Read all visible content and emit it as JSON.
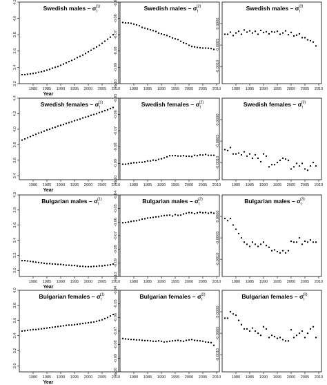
{
  "chart_data": [
    {
      "type": "scatter",
      "title": "Swedish males – σ",
      "superscript": "(1)",
      "subscript": "t",
      "xlabel": "Year",
      "xticks": [
        "1980",
        "1985",
        "1990",
        "1995",
        "2000",
        "2005",
        "2010"
      ],
      "yticks": [
        "3.2",
        "3.4",
        "3.6",
        "3.8",
        "4.0",
        "4.2"
      ],
      "xlim": [
        1975,
        2011
      ],
      "ylim": [
        3.2,
        4.2
      ],
      "x": [
        1976,
        1977,
        1978,
        1979,
        1980,
        1981,
        1982,
        1983,
        1984,
        1985,
        1986,
        1987,
        1988,
        1989,
        1990,
        1991,
        1992,
        1993,
        1994,
        1995,
        1996,
        1997,
        1998,
        1999,
        2000,
        2001,
        2002,
        2003,
        2004,
        2005,
        2006,
        2007,
        2008,
        2009
      ],
      "y": [
        3.31,
        3.31,
        3.315,
        3.32,
        3.325,
        3.33,
        3.34,
        3.345,
        3.355,
        3.365,
        3.375,
        3.39,
        3.4,
        3.41,
        3.425,
        3.44,
        3.455,
        3.47,
        3.485,
        3.5,
        3.52,
        3.535,
        3.55,
        3.57,
        3.59,
        3.61,
        3.63,
        3.65,
        3.67,
        3.695,
        3.72,
        3.745,
        3.77,
        3.8
      ]
    },
    {
      "type": "scatter",
      "title": "Swedish males – σ",
      "superscript": "(2)",
      "subscript": "t",
      "xlabel": "",
      "xticks": [
        "1980",
        "1985",
        "1990",
        "1995",
        "2000",
        "2005",
        "2010"
      ],
      "yticks": [
        "-0.05",
        "-0.06",
        "-0.07",
        "-0.08",
        "-0.09",
        "-0.10"
      ],
      "xlim": [
        1975,
        2011
      ],
      "ylim": [
        -0.1,
        -0.05
      ],
      "x": [
        1976,
        1977,
        1978,
        1979,
        1980,
        1981,
        1982,
        1983,
        1984,
        1985,
        1986,
        1987,
        1988,
        1989,
        1990,
        1991,
        1992,
        1993,
        1994,
        1995,
        1996,
        1997,
        1998,
        1999,
        2000,
        2001,
        2002,
        2003,
        2004,
        2005,
        2006,
        2007,
        2008,
        2009
      ],
      "y": [
        -0.0625,
        -0.0628,
        -0.0628,
        -0.063,
        -0.0635,
        -0.064,
        -0.0645,
        -0.0655,
        -0.066,
        -0.0665,
        -0.067,
        -0.0675,
        -0.068,
        -0.069,
        -0.0695,
        -0.07,
        -0.0705,
        -0.0712,
        -0.072,
        -0.0725,
        -0.073,
        -0.074,
        -0.075,
        -0.0755,
        -0.0765,
        -0.0772,
        -0.0775,
        -0.0778,
        -0.078,
        -0.0782,
        -0.0782,
        -0.0783,
        -0.0785,
        -0.079
      ]
    },
    {
      "type": "scatter",
      "title": "Swedish males – σ",
      "superscript": "(3)",
      "subscript": "t",
      "xlabel": "",
      "xticks": [
        "1980",
        "1985",
        "1990",
        "1995",
        "2000",
        "2005",
        "2010"
      ],
      "yticks": [
        "0.0000",
        "-0.0005",
        "-0.0010"
      ],
      "xlim": [
        1975,
        2011
      ],
      "ylim": [
        -0.0014,
        0.0005
      ],
      "x": [
        1976,
        1977,
        1978,
        1979,
        1980,
        1981,
        1982,
        1983,
        1984,
        1985,
        1986,
        1987,
        1988,
        1989,
        1990,
        1991,
        1992,
        1993,
        1994,
        1995,
        1996,
        1997,
        1998,
        1999,
        2000,
        2001,
        2002,
        2003,
        2004,
        2005,
        2006,
        2007,
        2008,
        2009
      ],
      "y": [
        -0.00025,
        -0.00025,
        -0.0002,
        -0.00028,
        -0.00022,
        -0.00018,
        -0.00025,
        -0.00015,
        -0.0002,
        -0.00017,
        -0.00022,
        -0.00018,
        -0.00025,
        -0.00016,
        -0.00021,
        -0.00019,
        -0.00024,
        -0.00019,
        -0.0002,
        -0.00018,
        -0.00025,
        -0.00022,
        -0.00017,
        -0.00026,
        -0.00021,
        -0.00029,
        -0.00027,
        -0.00024,
        -0.00033,
        -0.00033,
        -0.00038,
        -0.0004,
        -0.00043,
        -0.00052
      ]
    },
    {
      "type": "scatter",
      "title": "Swedish females – σ",
      "superscript": "(1)",
      "subscript": "t",
      "xlabel": "Year",
      "xticks": [
        "1980",
        "1985",
        "1990",
        "1995",
        "2000",
        "2005",
        "2010"
      ],
      "yticks": [
        "3.4",
        "3.6",
        "3.8",
        "4.0",
        "4.2",
        "4.4"
      ],
      "xlim": [
        1975,
        2011
      ],
      "ylim": [
        3.35,
        4.4
      ],
      "x": [
        1976,
        1977,
        1978,
        1979,
        1980,
        1981,
        1982,
        1983,
        1984,
        1985,
        1986,
        1987,
        1988,
        1989,
        1990,
        1991,
        1992,
        1993,
        1994,
        1995,
        1996,
        1997,
        1998,
        1999,
        2000,
        2001,
        2002,
        2003,
        2004,
        2005,
        2006,
        2007,
        2008,
        2009
      ],
      "y": [
        3.86,
        3.875,
        3.89,
        3.905,
        3.92,
        3.935,
        3.95,
        3.96,
        3.975,
        3.99,
        4.0,
        4.015,
        4.025,
        4.04,
        4.05,
        4.06,
        4.075,
        4.085,
        4.095,
        4.11,
        4.12,
        4.13,
        4.145,
        4.155,
        4.165,
        4.18,
        4.19,
        4.2,
        4.215,
        4.225,
        4.24,
        4.25,
        4.265,
        4.28
      ]
    },
    {
      "type": "scatter",
      "title": "Swedish females – σ",
      "superscript": "(2)",
      "subscript": "t",
      "xlabel": "",
      "xticks": [
        "1980",
        "1985",
        "1990",
        "1995",
        "2000",
        "2005",
        "2010"
      ],
      "yticks": [
        "-0.05",
        "-0.06",
        "-0.07",
        "-0.08",
        "-0.09",
        "-0.10"
      ],
      "xlim": [
        1975,
        2011
      ],
      "ylim": [
        -0.1,
        -0.05
      ],
      "x": [
        1976,
        1977,
        1978,
        1979,
        1980,
        1981,
        1982,
        1983,
        1984,
        1985,
        1986,
        1987,
        1988,
        1989,
        1990,
        1991,
        1992,
        1993,
        1994,
        1995,
        1996,
        1997,
        1998,
        1999,
        2000,
        2001,
        2002,
        2003,
        2004,
        2005,
        2006,
        2007,
        2008,
        2009
      ],
      "y": [
        -0.0905,
        -0.0905,
        -0.0902,
        -0.0899,
        -0.0896,
        -0.0896,
        -0.0893,
        -0.0893,
        -0.089,
        -0.0885,
        -0.0885,
        -0.088,
        -0.0882,
        -0.0875,
        -0.0872,
        -0.0866,
        -0.086,
        -0.0853,
        -0.0853,
        -0.0852,
        -0.0855,
        -0.0855,
        -0.0853,
        -0.0856,
        -0.0856,
        -0.0858,
        -0.085,
        -0.0853,
        -0.0848,
        -0.0849,
        -0.0845,
        -0.085,
        -0.085,
        -0.085
      ]
    },
    {
      "type": "scatter",
      "title": "Swedish females – σ",
      "superscript": "(3)",
      "subscript": "t",
      "xlabel": "",
      "xticks": [
        "1980",
        "1985",
        "1990",
        "1995",
        "2000",
        "2005",
        "2010"
      ],
      "yticks": [
        "0.0000",
        "-0.0005",
        "-0.0010"
      ],
      "xlim": [
        1975,
        2011
      ],
      "ylim": [
        -0.0014,
        0.0005
      ],
      "x": [
        1976,
        1977,
        1978,
        1979,
        1980,
        1981,
        1982,
        1983,
        1984,
        1985,
        1986,
        1987,
        1988,
        1989,
        1990,
        1991,
        1992,
        1993,
        1994,
        1995,
        1996,
        1997,
        1998,
        1999,
        2000,
        2001,
        2002,
        2003,
        2004,
        2005,
        2006,
        2007,
        2008,
        2009
      ],
      "y": [
        -0.0007,
        -0.00072,
        -0.00065,
        -0.0008,
        -0.0008,
        -0.00078,
        -0.00082,
        -0.00075,
        -0.00085,
        -0.0008,
        -0.0009,
        -0.00082,
        -0.0009,
        -0.00098,
        -0.0008,
        -0.00085,
        -0.0011,
        -0.00105,
        -0.00105,
        -0.001,
        -0.00095,
        -0.0009,
        -0.00092,
        -0.00095,
        -0.00115,
        -0.0011,
        -0.00102,
        -0.00108,
        -0.00102,
        -0.00115,
        -0.00118,
        -0.00108,
        -0.001,
        -0.00108
      ]
    },
    {
      "type": "scatter",
      "title": "Bulgarian males – σ",
      "superscript": "(1)",
      "subscript": "t",
      "xlabel": "Year",
      "xticks": [
        "1980",
        "1985",
        "1990",
        "1995",
        "2000",
        "2005",
        "2010"
      ],
      "yticks": [
        "3.0",
        "3.2",
        "3.4",
        "3.6",
        "3.8",
        "4.0"
      ],
      "xlim": [
        1975,
        2011
      ],
      "ylim": [
        2.92,
        4.0
      ],
      "x": [
        1976,
        1977,
        1978,
        1979,
        1980,
        1981,
        1982,
        1983,
        1984,
        1985,
        1986,
        1987,
        1988,
        1989,
        1990,
        1991,
        1992,
        1993,
        1994,
        1995,
        1996,
        1997,
        1998,
        1999,
        2000,
        2001,
        2002,
        2003,
        2004,
        2005,
        2006,
        2007,
        2008,
        2009
      ],
      "y": [
        3.13,
        3.13,
        3.125,
        3.12,
        3.115,
        3.11,
        3.105,
        3.1,
        3.095,
        3.09,
        3.09,
        3.085,
        3.085,
        3.08,
        3.08,
        3.075,
        3.07,
        3.07,
        3.065,
        3.065,
        3.06,
        3.055,
        3.055,
        3.05,
        3.05,
        3.05,
        3.055,
        3.055,
        3.06,
        3.06,
        3.065,
        3.07,
        3.075,
        3.085
      ]
    },
    {
      "type": "scatter",
      "title": "Bulgarian males – σ",
      "superscript": "(2)",
      "subscript": "t",
      "xlabel": "",
      "xticks": [
        "1980",
        "1985",
        "1990",
        "1995",
        "2000",
        "2005",
        "2010"
      ],
      "yticks": [
        "-0.04",
        "-0.05",
        "-0.06",
        "-0.07",
        "-0.08",
        "-0.09",
        "-0.10"
      ],
      "xlim": [
        1975,
        2011
      ],
      "ylim": [
        -0.1,
        -0.04
      ],
      "x": [
        1976,
        1977,
        1978,
        1979,
        1980,
        1981,
        1982,
        1983,
        1984,
        1985,
        1986,
        1987,
        1988,
        1989,
        1990,
        1991,
        1992,
        1993,
        1994,
        1995,
        1996,
        1997,
        1998,
        1999,
        2000,
        2001,
        2002,
        2003,
        2004,
        2005,
        2006,
        2007,
        2008,
        2009
      ],
      "y": [
        -0.0605,
        -0.0603,
        -0.06,
        -0.0595,
        -0.0592,
        -0.059,
        -0.0585,
        -0.0578,
        -0.0575,
        -0.057,
        -0.0568,
        -0.0565,
        -0.0562,
        -0.056,
        -0.0555,
        -0.0552,
        -0.055,
        -0.0548,
        -0.0555,
        -0.0545,
        -0.055,
        -0.0548,
        -0.054,
        -0.0535,
        -0.053,
        -0.0532,
        -0.0538,
        -0.0532,
        -0.0528,
        -0.0532,
        -0.053,
        -0.0535,
        -0.053,
        -0.0535
      ]
    },
    {
      "type": "scatter",
      "title": "Bulgarian males – σ",
      "superscript": "(3)",
      "subscript": "t",
      "xlabel": "",
      "xticks": [
        "1980",
        "1985",
        "1990",
        "1995",
        "2000",
        "2005",
        "2010"
      ],
      "yticks": [
        "0.0000",
        "-0.0005",
        "-0.0010"
      ],
      "xlim": [
        1975,
        2011
      ],
      "ylim": [
        -0.0014,
        0.0005
      ],
      "x": [
        1976,
        1977,
        1978,
        1979,
        1980,
        1981,
        1982,
        1983,
        1984,
        1985,
        1986,
        1987,
        1988,
        1989,
        1990,
        1991,
        1992,
        1993,
        1994,
        1995,
        1996,
        1997,
        1998,
        1999,
        2000,
        2001,
        2002,
        2003,
        2004,
        2005,
        2006,
        2007,
        2008,
        2009
      ],
      "y": [
        -5e-05,
        -0.0001,
        -5e-05,
        -0.0002,
        -0.0003,
        -0.0004,
        -0.0005,
        -0.0006,
        -0.00065,
        -0.0007,
        -0.0006,
        -0.00065,
        -0.0007,
        -0.00065,
        -0.0006,
        -0.00068,
        -0.00072,
        -0.0008,
        -0.00078,
        -0.00082,
        -0.00085,
        -0.0008,
        -0.00085,
        -0.0008,
        -0.00058,
        -0.0006,
        -0.0006,
        -0.0005,
        -0.00065,
        -0.00058,
        -0.0006,
        -0.00055,
        -0.0006,
        -0.0006
      ]
    },
    {
      "type": "scatter",
      "title": "Bulgarian females – σ",
      "superscript": "(1)",
      "subscript": "t",
      "xlabel": "Year",
      "xticks": [
        "1980",
        "1985",
        "1990",
        "1995",
        "2000",
        "2005",
        "2010"
      ],
      "yticks": [
        "3.0",
        "3.2",
        "3.4",
        "3.6",
        "3.8",
        "4.0"
      ],
      "xlim": [
        1975,
        2011
      ],
      "ylim": [
        2.92,
        4.0
      ],
      "x": [
        1976,
        1977,
        1978,
        1979,
        1980,
        1981,
        1982,
        1983,
        1984,
        1985,
        1986,
        1987,
        1988,
        1989,
        1990,
        1991,
        1992,
        1993,
        1994,
        1995,
        1996,
        1997,
        1998,
        1999,
        2000,
        2001,
        2002,
        2003,
        2004,
        2005,
        2006,
        2007,
        2008,
        2009
      ],
      "y": [
        3.46,
        3.465,
        3.47,
        3.475,
        3.48,
        3.48,
        3.485,
        3.49,
        3.495,
        3.5,
        3.505,
        3.51,
        3.515,
        3.52,
        3.525,
        3.53,
        3.535,
        3.54,
        3.54,
        3.545,
        3.55,
        3.555,
        3.56,
        3.565,
        3.57,
        3.575,
        3.58,
        3.59,
        3.6,
        3.61,
        3.625,
        3.64,
        3.66,
        3.68
      ]
    },
    {
      "type": "scatter",
      "title": "Bulgarian females – σ",
      "superscript": "(2)",
      "subscript": "t",
      "xlabel": "",
      "xticks": [
        "1980",
        "1985",
        "1990",
        "1995",
        "2000",
        "2005",
        "2010"
      ],
      "yticks": [
        "-0.04",
        "-0.05",
        "-0.06",
        "-0.07",
        "-0.08",
        "-0.09",
        "-0.10"
      ],
      "xlim": [
        1975,
        2011
      ],
      "ylim": [
        -0.1,
        -0.04
      ],
      "x": [
        1976,
        1977,
        1978,
        1979,
        1980,
        1981,
        1982,
        1983,
        1984,
        1985,
        1986,
        1987,
        1988,
        1989,
        1990,
        1991,
        1992,
        1993,
        1994,
        1995,
        1996,
        1997,
        1998,
        1999,
        2000,
        2001,
        2002,
        2003,
        2004,
        2005,
        2006,
        2007,
        2008,
        2009
      ],
      "y": [
        -0.0755,
        -0.0758,
        -0.076,
        -0.0762,
        -0.0762,
        -0.0765,
        -0.0765,
        -0.0768,
        -0.077,
        -0.077,
        -0.0772,
        -0.0775,
        -0.0775,
        -0.0772,
        -0.0775,
        -0.078,
        -0.0778,
        -0.0775,
        -0.0772,
        -0.077,
        -0.0768,
        -0.0772,
        -0.0775,
        -0.0768,
        -0.0765,
        -0.0762,
        -0.0768,
        -0.077,
        -0.0772,
        -0.0775,
        -0.078,
        -0.0782,
        -0.0785,
        -0.0805
      ]
    },
    {
      "type": "scatter",
      "title": "Bulgarian females – σ",
      "superscript": "(3)",
      "subscript": "t",
      "xlabel": "",
      "xticks": [
        "1980",
        "1985",
        "1990",
        "1995",
        "2000",
        "2005",
        "2010"
      ],
      "yticks": [
        "0.0000",
        "-0.0005",
        "-0.0010"
      ],
      "xlim": [
        1975,
        2011
      ],
      "ylim": [
        -0.0014,
        0.0005
      ],
      "x": [
        1976,
        1977,
        1978,
        1979,
        1980,
        1981,
        1982,
        1983,
        1984,
        1985,
        1986,
        1987,
        1988,
        1989,
        1990,
        1991,
        1992,
        1993,
        1994,
        1995,
        1996,
        1997,
        1998,
        1999,
        2000,
        2001,
        2002,
        2003,
        2004,
        2005,
        2006,
        2007,
        2008,
        2009
      ],
      "y": [
        -0.00015,
        -0.00015,
        0.0,
        -5e-05,
        -8e-05,
        -0.0002,
        -0.0003,
        -0.0004,
        -0.0004,
        -0.00045,
        -0.00038,
        -0.00045,
        -0.0005,
        -0.00055,
        -0.00035,
        -0.0004,
        -0.0006,
        -0.00055,
        -0.00058,
        -0.00062,
        -0.0006,
        -0.00065,
        -0.00068,
        -0.00068,
        -0.00042,
        -0.0006,
        -0.00055,
        -0.0005,
        -0.00045,
        -0.0006,
        -0.0005,
        -0.0004,
        -0.00035,
        -0.0006
      ]
    }
  ]
}
